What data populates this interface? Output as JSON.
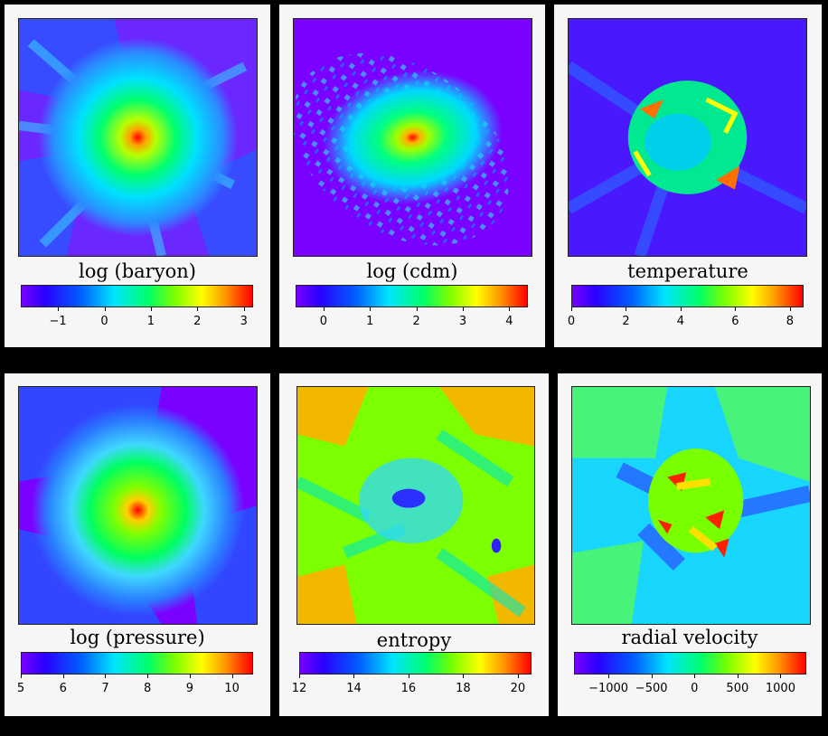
{
  "panels": [
    {
      "id": "baryon",
      "title": "log (baryon)",
      "image": "log baryon density map",
      "colorbar": {
        "min": -1.8,
        "max": 3.2,
        "ticks": [
          "−1",
          "0",
          "1",
          "2",
          "3"
        ],
        "tick_values": [
          -1,
          0,
          1,
          2,
          3
        ]
      }
    },
    {
      "id": "cdm",
      "title": "log (cdm)",
      "image": "log dark matter density map",
      "colorbar": {
        "min": -0.6,
        "max": 4.4,
        "ticks": [
          "0",
          "1",
          "2",
          "3",
          "4"
        ],
        "tick_values": [
          0,
          1,
          2,
          3,
          4
        ]
      }
    },
    {
      "id": "temperature",
      "title": "temperature",
      "image": "temperature map",
      "colorbar": {
        "min": 0,
        "max": 8.5,
        "ticks": [
          "0",
          "2",
          "4",
          "6",
          "8"
        ],
        "tick_values": [
          0,
          2,
          4,
          6,
          8
        ]
      }
    },
    {
      "id": "pressure",
      "title": "log (pressure)",
      "image": "log pressure map",
      "colorbar": {
        "min": 5,
        "max": 10.5,
        "ticks": [
          "5",
          "6",
          "7",
          "8",
          "9",
          "10"
        ],
        "tick_values": [
          5,
          6,
          7,
          8,
          9,
          10
        ]
      }
    },
    {
      "id": "entropy",
      "title": "entropy",
      "image": "entropy map",
      "colorbar": {
        "min": 12,
        "max": 20.5,
        "ticks": [
          "12",
          "14",
          "16",
          "18",
          "20"
        ],
        "tick_values": [
          12,
          14,
          16,
          18,
          20
        ]
      }
    },
    {
      "id": "radial-velocity",
      "title": "radial velocity",
      "image": "radial velocity map",
      "colorbar": {
        "min": -1400,
        "max": 1300,
        "ticks": [
          "−1000",
          "−500",
          "0",
          "500",
          "1000"
        ],
        "tick_values": [
          -1000,
          -500,
          0,
          500,
          1000
        ]
      }
    }
  ],
  "colors": {
    "panel_bg": "#f6f6f6",
    "page_bg": "#000000",
    "colormap": [
      "#7a00ff",
      "#2a00ff",
      "#0060ff",
      "#00e4ff",
      "#00ff6a",
      "#78ff00",
      "#ffff00",
      "#ff9a00",
      "#ff0000"
    ]
  }
}
